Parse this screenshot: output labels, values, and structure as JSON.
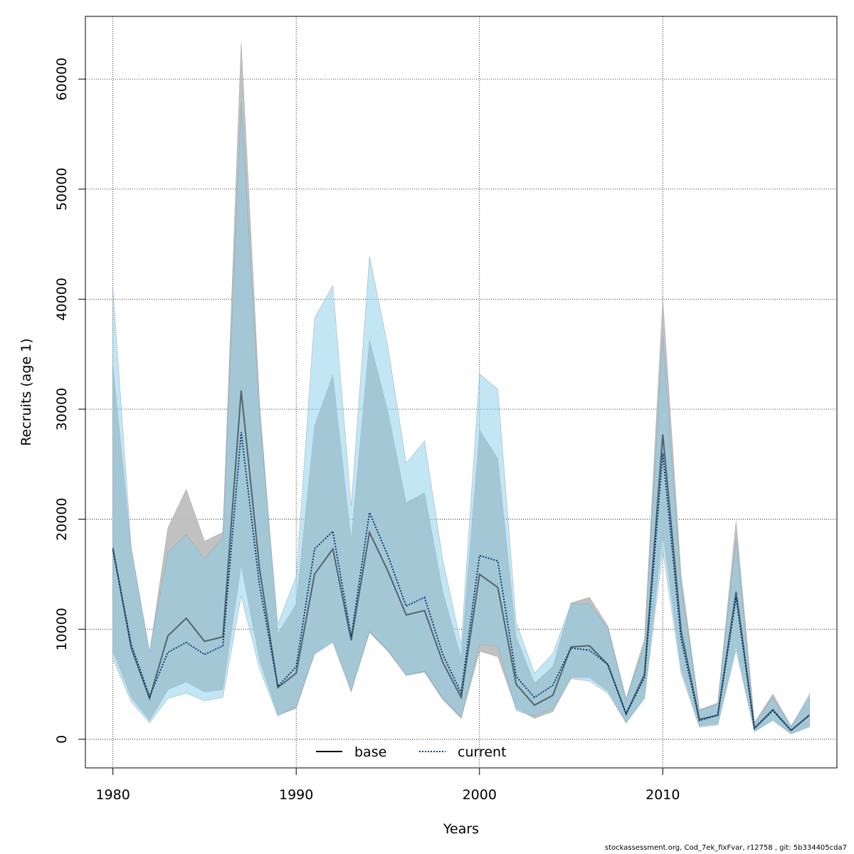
{
  "chart_data": {
    "type": "line",
    "xlabel": "Years",
    "ylabel": "Recruits (age 1)",
    "xlim": [
      1978.5,
      2019.5
    ],
    "ylim": [
      -2600,
      65700
    ],
    "x_ticks": [
      1980,
      1990,
      2000,
      2010
    ],
    "y_ticks": [
      0,
      10000,
      20000,
      30000,
      40000,
      50000,
      60000
    ],
    "x_tick_labels": [
      "1980",
      "1990",
      "2000",
      "2010"
    ],
    "y_tick_labels": [
      "0",
      "10000",
      "20000",
      "30000",
      "40000",
      "50000",
      "60000"
    ],
    "grid": "dotted",
    "legend_position": "bottom",
    "x": [
      1980,
      1981,
      1982,
      1983,
      1984,
      1985,
      1986,
      1987,
      1988,
      1989,
      1990,
      1991,
      1992,
      1993,
      1994,
      1995,
      1996,
      1997,
      1998,
      1999,
      2000,
      2001,
      2002,
      2003,
      2004,
      2005,
      2006,
      2007,
      2008,
      2009,
      2010,
      2011,
      2012,
      2013,
      2014,
      2015,
      2016,
      2017,
      2018
    ],
    "series": [
      {
        "name": "base",
        "color": "#000000",
        "band_color": "#bebebe",
        "values": [
          17400,
          8300,
          3700,
          9400,
          11000,
          8900,
          9300,
          31700,
          15500,
          4700,
          6000,
          15000,
          17300,
          9000,
          18800,
          15300,
          11300,
          11700,
          7000,
          3800,
          15000,
          13800,
          5000,
          3100,
          4000,
          8400,
          8500,
          6800,
          2300,
          5900,
          27700,
          9800,
          1800,
          2200,
          13400,
          1000,
          2700,
          800,
          2200
        ],
        "lower": [
          8000,
          3800,
          1700,
          4500,
          5200,
          4300,
          4500,
          15800,
          7200,
          2200,
          2800,
          7800,
          8900,
          4400,
          9700,
          8000,
          5800,
          6100,
          3600,
          1900,
          8000,
          7500,
          2800,
          1900,
          2500,
          5600,
          5600,
          4400,
          1500,
          3800,
          18700,
          6400,
          1200,
          1400,
          8500,
          700,
          1800,
          500,
          1200
        ],
        "upper": [
          34000,
          17400,
          7800,
          19200,
          22700,
          18000,
          18800,
          63300,
          30600,
          9600,
          12300,
          28500,
          33100,
          18100,
          36300,
          29800,
          21500,
          22400,
          13400,
          7400,
          28100,
          25500,
          9300,
          5100,
          6600,
          12400,
          12900,
          10300,
          3700,
          9100,
          40000,
          14900,
          2700,
          3300,
          19800,
          1500,
          4100,
          1200,
          3900
        ]
      },
      {
        "name": "current",
        "color": "#003b73",
        "band_color": "#87ceeb",
        "values": [
          17200,
          8600,
          3900,
          7900,
          8800,
          7700,
          8500,
          27900,
          14000,
          4800,
          6600,
          17300,
          18900,
          9300,
          20600,
          16700,
          12100,
          12900,
          7700,
          4200,
          16700,
          16200,
          5700,
          3800,
          4900,
          8300,
          8100,
          6800,
          2300,
          5600,
          26000,
          9100,
          1700,
          2200,
          12900,
          1000,
          2600,
          800,
          2200
        ],
        "lower": [
          7300,
          3400,
          1500,
          3700,
          4200,
          3500,
          3800,
          13000,
          6400,
          2100,
          3000,
          7700,
          8800,
          4300,
          9800,
          8100,
          5800,
          6200,
          3700,
          2000,
          8600,
          8500,
          2600,
          2100,
          2800,
          5500,
          5300,
          4200,
          1500,
          3700,
          17100,
          6000,
          1100,
          1300,
          8100,
          700,
          1700,
          500,
          1100
        ],
        "upper": [
          41000,
          17400,
          8000,
          17000,
          18600,
          16400,
          18300,
          57900,
          29400,
          10500,
          14800,
          38300,
          41200,
          21200,
          43900,
          35700,
          25100,
          27100,
          16300,
          8600,
          33200,
          31800,
          10600,
          6000,
          7800,
          12300,
          12300,
          10100,
          3600,
          8500,
          36600,
          13900,
          2600,
          3200,
          18200,
          1400,
          3800,
          1100,
          4100
        ]
      }
    ]
  },
  "footer": "stockassessment.org, Cod_7ek_fixFvar, r12758 , git: 5b334405cda7"
}
